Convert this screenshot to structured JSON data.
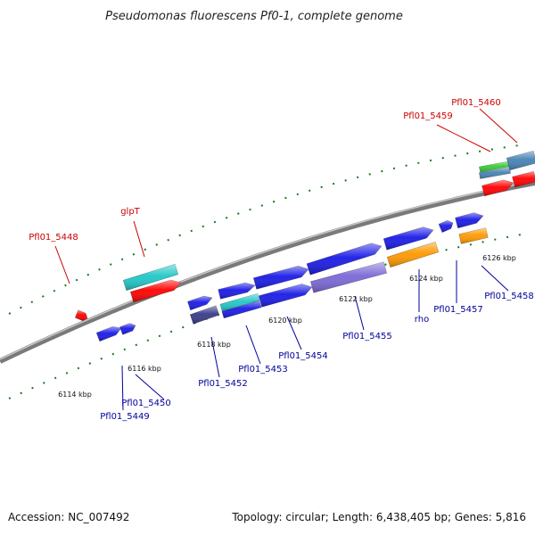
{
  "title": "Pseudomonas fluorescens Pf0-1, complete genome",
  "footer": {
    "accession": "Accession: NC_007492",
    "topology": "Topology: circular; Length: 6,438,405 bp; Genes: 5,816"
  },
  "ticks": [
    "6114 kbp",
    "6116 kbp",
    "6118 kbp",
    "6120 kbp",
    "6122 kbp",
    "6124 kbp",
    "6126 kbp"
  ],
  "gene_labels": [
    {
      "name": "glpT",
      "color": "#cc0000"
    },
    {
      "name": "Pfl01_5448",
      "color": "#cc0000"
    },
    {
      "name": "Pfl01_5459",
      "color": "#cc0000"
    },
    {
      "name": "Pfl01_5460",
      "color": "#cc0000"
    },
    {
      "name": "Pfl01_5449",
      "color": "#000099"
    },
    {
      "name": "Pfl01_5450",
      "color": "#000099"
    },
    {
      "name": "Pfl01_5452",
      "color": "#000099"
    },
    {
      "name": "Pfl01_5453",
      "color": "#000099"
    },
    {
      "name": "Pfl01_5454",
      "color": "#000099"
    },
    {
      "name": "Pfl01_5455",
      "color": "#000099"
    },
    {
      "name": "rho",
      "color": "#000099"
    },
    {
      "name": "Pfl01_5457",
      "color": "#000099"
    },
    {
      "name": "Pfl01_5458",
      "color": "#000099"
    }
  ],
  "colors": {
    "backbone": "#808080",
    "tick": "#1a7a1a",
    "blue": "#1a1ae6",
    "red": "#ff0000",
    "cyan": "#20c8c8",
    "orange": "#ff9900",
    "lavender": "#7b68d6",
    "navy": "#3a3a8a",
    "green": "#33cc33",
    "steel": "#4682b4"
  }
}
